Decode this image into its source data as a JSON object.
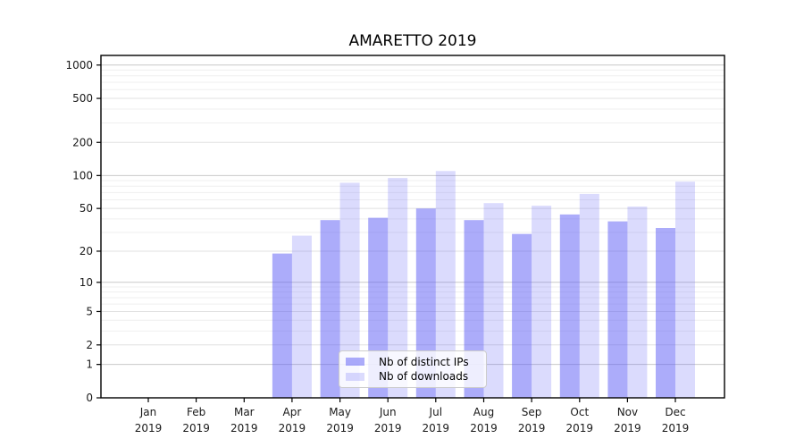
{
  "page": {
    "title": "AMARETTO 2019"
  },
  "chart_data": {
    "type": "bar",
    "title": "AMARETTO 2019",
    "categories": [
      "Jan 2019",
      "Feb 2019",
      "Mar 2019",
      "Apr 2019",
      "May 2019",
      "Jun 2019",
      "Jul 2019",
      "Aug 2019",
      "Sep 2019",
      "Oct 2019",
      "Nov 2019",
      "Dec 2019"
    ],
    "series": [
      {
        "name": "Nb of distinct IPs",
        "color": "rgba(90,90,245,0.5)",
        "values": [
          0,
          0,
          0,
          19,
          39,
          41,
          50,
          39,
          29,
          44,
          38,
          33
        ]
      },
      {
        "name": "Nb of downloads",
        "color": "rgba(90,90,245,0.22)",
        "values": [
          0,
          0,
          0,
          28,
          86,
          95,
          110,
          56,
          53,
          68,
          52,
          88
        ]
      }
    ],
    "xlabel": "",
    "ylabel": "",
    "yscale": "log1p",
    "ylim": [
      0,
      1200
    ],
    "yticks": [
      0,
      1,
      2,
      5,
      10,
      20,
      50,
      100,
      200,
      500,
      1000
    ],
    "yticks_decade": [
      1,
      10,
      100,
      1000
    ],
    "y_minor_ticks": [
      3,
      4,
      6,
      7,
      8,
      9,
      30,
      40,
      60,
      70,
      80,
      90,
      300,
      400,
      600,
      700,
      800,
      900
    ],
    "grid": true,
    "legend_position": "lower center"
  },
  "colors": {
    "bar_base": "#5a5af5",
    "grid_decade": "#c9c9c9",
    "grid_labeled": "#e0e0e0",
    "grid_minor": "#efefef",
    "axis": "#000000",
    "text": "#1a1a1a",
    "legend_bg": "rgba(255,255,255,0.8)",
    "legend_border": "#cccccc"
  }
}
